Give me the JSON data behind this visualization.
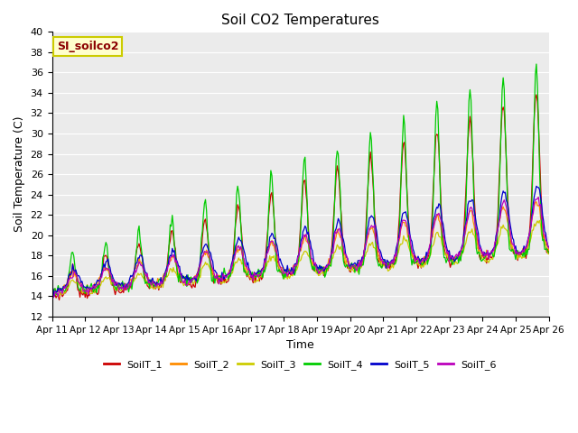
{
  "title": "Soil CO2 Temperatures",
  "xlabel": "Time",
  "ylabel": "Soil Temperature (C)",
  "ylim": [
    12,
    40
  ],
  "yticks": [
    12,
    14,
    16,
    18,
    20,
    22,
    24,
    26,
    28,
    30,
    32,
    34,
    36,
    38,
    40
  ],
  "annotation_label": "SI_soilco2",
  "annotation_color": "#8B0000",
  "annotation_bg": "#FFFFCC",
  "annotation_edge": "#CCCC00",
  "series_colors": [
    "#CC0000",
    "#FF8C00",
    "#CCCC00",
    "#00CC00",
    "#0000CC",
    "#BB00BB"
  ],
  "series_names": [
    "SoilT_1",
    "SoilT_2",
    "SoilT_3",
    "SoilT_4",
    "SoilT_5",
    "SoilT_6"
  ],
  "xtick_labels": [
    "Apr 11",
    "Apr 12",
    "Apr 13",
    "Apr 14",
    "Apr 15",
    "Apr 16",
    "Apr 17",
    "Apr 18",
    "Apr 19",
    "Apr 20",
    "Apr 21",
    "Apr 22",
    "Apr 23",
    "Apr 24",
    "Apr 25",
    "Apr 26"
  ],
  "plot_bg": "#EBEBEB",
  "grid_color": "#FFFFFF",
  "days": 15,
  "n_points": 480
}
